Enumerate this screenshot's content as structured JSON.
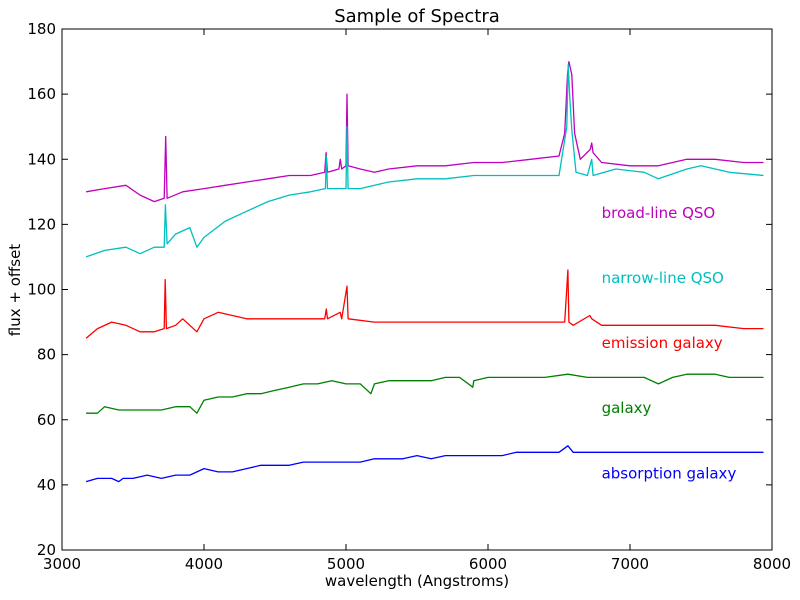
{
  "chart_data": {
    "type": "line",
    "title": "Sample of Spectra",
    "xlabel": "wavelength (Angstroms)",
    "ylabel": "flux + offset",
    "xlim": [
      3000,
      8000
    ],
    "ylim": [
      20,
      180
    ],
    "xticks": [
      3000,
      4000,
      5000,
      6000,
      7000,
      8000
    ],
    "yticks": [
      20,
      40,
      60,
      80,
      100,
      120,
      140,
      160,
      180
    ],
    "grid": false,
    "legend": "inline text labels at right",
    "series": [
      {
        "name": "broad-line QSO",
        "color": "#bf00bf",
        "label_at": [
          6800,
          122
        ],
        "points": [
          [
            3170,
            130
          ],
          [
            3300,
            131
          ],
          [
            3450,
            132
          ],
          [
            3550,
            129
          ],
          [
            3650,
            127
          ],
          [
            3720,
            128
          ],
          [
            3730,
            147
          ],
          [
            3740,
            128
          ],
          [
            3850,
            130
          ],
          [
            4000,
            131
          ],
          [
            4150,
            132
          ],
          [
            4300,
            133
          ],
          [
            4450,
            134
          ],
          [
            4600,
            135
          ],
          [
            4750,
            135
          ],
          [
            4850,
            136
          ],
          [
            4860,
            142
          ],
          [
            4870,
            136
          ],
          [
            4950,
            137
          ],
          [
            4960,
            140
          ],
          [
            4970,
            137
          ],
          [
            5000,
            138
          ],
          [
            5007,
            160
          ],
          [
            5015,
            138
          ],
          [
            5100,
            137
          ],
          [
            5200,
            136
          ],
          [
            5300,
            137
          ],
          [
            5500,
            138
          ],
          [
            5700,
            138
          ],
          [
            5900,
            139
          ],
          [
            6100,
            139
          ],
          [
            6300,
            140
          ],
          [
            6500,
            141
          ],
          [
            6540,
            148
          ],
          [
            6560,
            166
          ],
          [
            6570,
            170
          ],
          [
            6590,
            166
          ],
          [
            6610,
            148
          ],
          [
            6650,
            140
          ],
          [
            6720,
            143
          ],
          [
            6730,
            145
          ],
          [
            6740,
            142
          ],
          [
            6800,
            139
          ],
          [
            7000,
            138
          ],
          [
            7200,
            138
          ],
          [
            7400,
            140
          ],
          [
            7600,
            140
          ],
          [
            7800,
            139
          ],
          [
            7940,
            139
          ]
        ]
      },
      {
        "name": "narrow-line QSO",
        "color": "#00bfbf",
        "label_at": [
          6800,
          102
        ],
        "points": [
          [
            3170,
            110
          ],
          [
            3300,
            112
          ],
          [
            3450,
            113
          ],
          [
            3550,
            111
          ],
          [
            3650,
            113
          ],
          [
            3720,
            113
          ],
          [
            3728,
            126
          ],
          [
            3740,
            114
          ],
          [
            3800,
            117
          ],
          [
            3900,
            119
          ],
          [
            3950,
            113
          ],
          [
            4000,
            116
          ],
          [
            4150,
            121
          ],
          [
            4300,
            124
          ],
          [
            4450,
            127
          ],
          [
            4600,
            129
          ],
          [
            4750,
            130
          ],
          [
            4855,
            131
          ],
          [
            4861,
            141
          ],
          [
            4870,
            131
          ],
          [
            4950,
            131
          ],
          [
            5000,
            131
          ],
          [
            5007,
            150
          ],
          [
            5015,
            131
          ],
          [
            5100,
            131
          ],
          [
            5300,
            133
          ],
          [
            5500,
            134
          ],
          [
            5700,
            134
          ],
          [
            5900,
            135
          ],
          [
            6100,
            135
          ],
          [
            6300,
            135
          ],
          [
            6500,
            135
          ],
          [
            6555,
            150
          ],
          [
            6565,
            169
          ],
          [
            6575,
            160
          ],
          [
            6590,
            149
          ],
          [
            6620,
            136
          ],
          [
            6700,
            135
          ],
          [
            6730,
            140
          ],
          [
            6740,
            135
          ],
          [
            6900,
            137
          ],
          [
            7100,
            136
          ],
          [
            7200,
            134
          ],
          [
            7400,
            137
          ],
          [
            7500,
            138
          ],
          [
            7700,
            136
          ],
          [
            7940,
            135
          ]
        ]
      },
      {
        "name": "emission galaxy",
        "color": "#ff0000",
        "label_at": [
          6800,
          82
        ],
        "points": [
          [
            3170,
            85
          ],
          [
            3250,
            88
          ],
          [
            3350,
            90
          ],
          [
            3450,
            89
          ],
          [
            3550,
            87
          ],
          [
            3650,
            87
          ],
          [
            3720,
            88
          ],
          [
            3727,
            103
          ],
          [
            3735,
            88
          ],
          [
            3800,
            89
          ],
          [
            3850,
            91
          ],
          [
            3900,
            89
          ],
          [
            3950,
            87
          ],
          [
            4000,
            91
          ],
          [
            4100,
            93
          ],
          [
            4200,
            92
          ],
          [
            4300,
            91
          ],
          [
            4500,
            91
          ],
          [
            4700,
            91
          ],
          [
            4850,
            91
          ],
          [
            4861,
            94
          ],
          [
            4870,
            91
          ],
          [
            4959,
            93
          ],
          [
            4970,
            91
          ],
          [
            5007,
            101
          ],
          [
            5015,
            91
          ],
          [
            5200,
            90
          ],
          [
            5400,
            90
          ],
          [
            5600,
            90
          ],
          [
            5800,
            90
          ],
          [
            6000,
            90
          ],
          [
            6200,
            90
          ],
          [
            6400,
            90
          ],
          [
            6540,
            90
          ],
          [
            6563,
            106
          ],
          [
            6570,
            90
          ],
          [
            6600,
            89
          ],
          [
            6717,
            92
          ],
          [
            6731,
            91
          ],
          [
            6800,
            89
          ],
          [
            7000,
            89
          ],
          [
            7200,
            89
          ],
          [
            7400,
            89
          ],
          [
            7600,
            89
          ],
          [
            7800,
            88
          ],
          [
            7940,
            88
          ]
        ]
      },
      {
        "name": "galaxy",
        "color": "#008000",
        "label_at": [
          6800,
          62
        ],
        "points": [
          [
            3170,
            62
          ],
          [
            3250,
            62
          ],
          [
            3300,
            64
          ],
          [
            3400,
            63
          ],
          [
            3500,
            63
          ],
          [
            3600,
            63
          ],
          [
            3700,
            63
          ],
          [
            3800,
            64
          ],
          [
            3900,
            64
          ],
          [
            3950,
            62
          ],
          [
            4000,
            66
          ],
          [
            4100,
            67
          ],
          [
            4200,
            67
          ],
          [
            4300,
            68
          ],
          [
            4400,
            68
          ],
          [
            4500,
            69
          ],
          [
            4600,
            70
          ],
          [
            4700,
            71
          ],
          [
            4800,
            71
          ],
          [
            4900,
            72
          ],
          [
            5000,
            71
          ],
          [
            5100,
            71
          ],
          [
            5175,
            68
          ],
          [
            5200,
            71
          ],
          [
            5300,
            72
          ],
          [
            5400,
            72
          ],
          [
            5500,
            72
          ],
          [
            5600,
            72
          ],
          [
            5700,
            73
          ],
          [
            5800,
            73
          ],
          [
            5893,
            70
          ],
          [
            5900,
            72
          ],
          [
            6000,
            73
          ],
          [
            6200,
            73
          ],
          [
            6400,
            73
          ],
          [
            6563,
            74
          ],
          [
            6700,
            73
          ],
          [
            6900,
            73
          ],
          [
            7100,
            73
          ],
          [
            7200,
            71
          ],
          [
            7300,
            73
          ],
          [
            7400,
            74
          ],
          [
            7500,
            74
          ],
          [
            7600,
            74
          ],
          [
            7700,
            73
          ],
          [
            7800,
            73
          ],
          [
            7940,
            73
          ]
        ]
      },
      {
        "name": "absorption galaxy",
        "color": "#0000ff",
        "label_at": [
          6800,
          42
        ],
        "points": [
          [
            3170,
            41
          ],
          [
            3250,
            42
          ],
          [
            3350,
            42
          ],
          [
            3400,
            41
          ],
          [
            3430,
            42
          ],
          [
            3500,
            42
          ],
          [
            3600,
            43
          ],
          [
            3700,
            42
          ],
          [
            3800,
            43
          ],
          [
            3900,
            43
          ],
          [
            4000,
            45
          ],
          [
            4100,
            44
          ],
          [
            4200,
            44
          ],
          [
            4300,
            45
          ],
          [
            4400,
            46
          ],
          [
            4500,
            46
          ],
          [
            4600,
            46
          ],
          [
            4700,
            47
          ],
          [
            4800,
            47
          ],
          [
            4900,
            47
          ],
          [
            5000,
            47
          ],
          [
            5100,
            47
          ],
          [
            5200,
            48
          ],
          [
            5300,
            48
          ],
          [
            5400,
            48
          ],
          [
            5500,
            49
          ],
          [
            5600,
            48
          ],
          [
            5700,
            49
          ],
          [
            5800,
            49
          ],
          [
            5900,
            49
          ],
          [
            6000,
            49
          ],
          [
            6100,
            49
          ],
          [
            6200,
            50
          ],
          [
            6300,
            50
          ],
          [
            6400,
            50
          ],
          [
            6500,
            50
          ],
          [
            6563,
            52
          ],
          [
            6600,
            50
          ],
          [
            6700,
            50
          ],
          [
            6800,
            50
          ],
          [
            6900,
            50
          ],
          [
            7000,
            50
          ],
          [
            7100,
            50
          ],
          [
            7200,
            50
          ],
          [
            7300,
            50
          ],
          [
            7400,
            50
          ],
          [
            7500,
            50
          ],
          [
            7600,
            50
          ],
          [
            7700,
            50
          ],
          [
            7800,
            50
          ],
          [
            7940,
            50
          ]
        ]
      }
    ]
  }
}
